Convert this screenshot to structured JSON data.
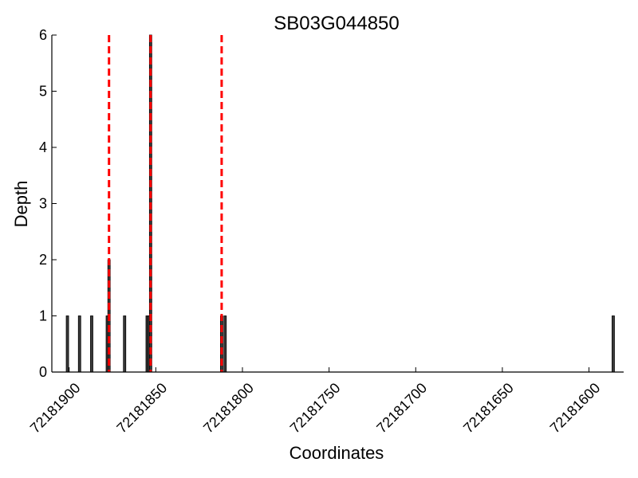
{
  "chart_data": {
    "type": "bar",
    "title": "SB03G044850",
    "xlabel": "Coordinates",
    "ylabel": "Depth",
    "x_axis_reversed": true,
    "xlim": [
      72181910,
      72181580
    ],
    "ylim": [
      0,
      6
    ],
    "grid": false,
    "x_ticks": [
      72181900,
      72181850,
      72181800,
      72181750,
      72181700,
      72181650,
      72181600
    ],
    "x_tick_labels": [
      "72181900",
      "72181850",
      "72181800",
      "72181750",
      "72181700",
      "72181650",
      "72181600"
    ],
    "y_ticks": [
      0,
      1,
      2,
      3,
      4,
      5,
      6
    ],
    "y_tick_labels": [
      "0",
      "1",
      "2",
      "3",
      "4",
      "5",
      "6"
    ],
    "series": [
      {
        "bar_color": "#000000",
        "points": [
          {
            "x": 72181901,
            "y": 1
          },
          {
            "x": 72181894,
            "y": 1
          },
          {
            "x": 72181887,
            "y": 1
          },
          {
            "x": 72181878,
            "y": 1
          },
          {
            "x": 72181877,
            "y": 2
          },
          {
            "x": 72181868,
            "y": 1
          },
          {
            "x": 72181855,
            "y": 1
          },
          {
            "x": 72181854,
            "y": 1
          },
          {
            "x": 72181853,
            "y": 6
          },
          {
            "x": 72181812,
            "y": 1
          },
          {
            "x": 72181810,
            "y": 1
          },
          {
            "x": 72181586,
            "y": 1
          }
        ]
      }
    ],
    "reference_lines": {
      "color": "#ff0000",
      "style": "dashed",
      "x": [
        72181877,
        72181853,
        72181812
      ]
    }
  }
}
